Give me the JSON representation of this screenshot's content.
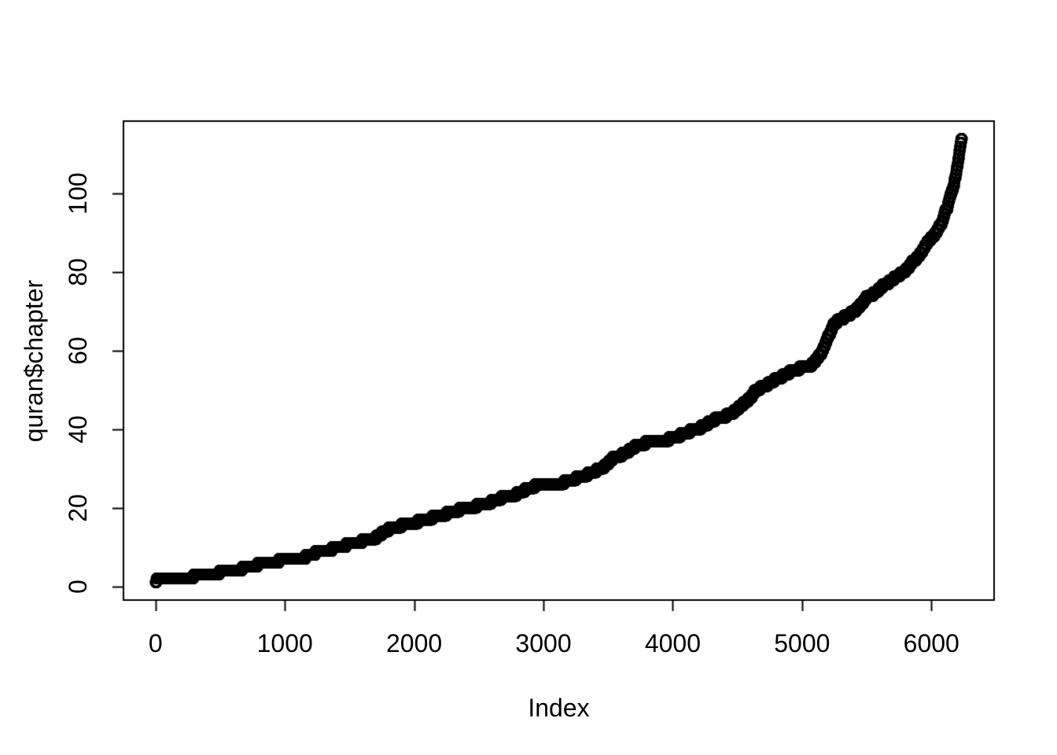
{
  "figure": {
    "background_color": "#FFFFFF",
    "axis_color": "#000000",
    "text_color": "#000000"
  },
  "chart_data": {
    "type": "scatter",
    "title": "",
    "xlabel": "Index",
    "ylabel": "quran$chapter",
    "marker": "open-circle",
    "point_color": "#000000",
    "grid": false,
    "legend": false,
    "n_points": 6236,
    "x_ticks": [
      0,
      1000,
      2000,
      3000,
      4000,
      5000,
      6000
    ],
    "y_ticks": [
      0,
      20,
      40,
      60,
      80,
      100
    ],
    "xlim": [
      -248,
      6485
    ],
    "ylim": [
      -3.5,
      118.5
    ],
    "x_range_data": [
      1,
      6236
    ],
    "y_range_data": [
      1,
      114
    ],
    "series_description": "y = chapter number of the verse at position x (verse index 1..6236); values are run-length encoded by verses_per_chapter: chapter c covers the next verses_per_chapter[c-1] consecutive indices",
    "verses_per_chapter": [
      7,
      286,
      200,
      176,
      120,
      165,
      206,
      75,
      129,
      109,
      123,
      111,
      43,
      52,
      99,
      128,
      111,
      110,
      98,
      135,
      112,
      78,
      118,
      64,
      77,
      227,
      93,
      88,
      69,
      60,
      34,
      30,
      73,
      54,
      45,
      83,
      182,
      88,
      75,
      85,
      54,
      53,
      89,
      59,
      37,
      35,
      38,
      29,
      18,
      45,
      60,
      49,
      62,
      55,
      78,
      96,
      29,
      22,
      24,
      13,
      14,
      11,
      11,
      18,
      12,
      12,
      30,
      52,
      52,
      44,
      28,
      28,
      20,
      56,
      40,
      31,
      50,
      40,
      46,
      42,
      29,
      19,
      36,
      25,
      22,
      17,
      19,
      26,
      30,
      20,
      15,
      21,
      11,
      8,
      8,
      19,
      5,
      8,
      8,
      11,
      11,
      8,
      3,
      9,
      5,
      4,
      7,
      3,
      6,
      3,
      5,
      4,
      5,
      6
    ]
  }
}
